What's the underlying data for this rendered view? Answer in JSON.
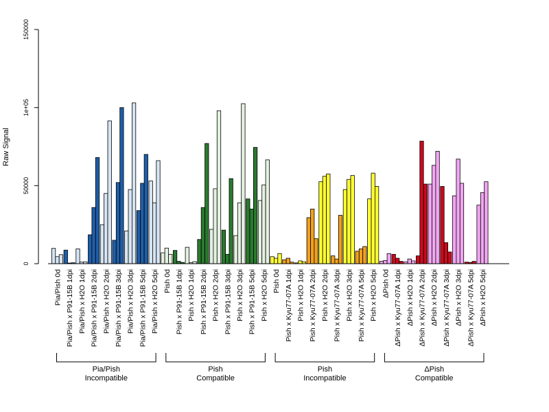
{
  "chart_data": {
    "type": "bar",
    "ylabel": "Raw Signal",
    "ylim": [
      0,
      150000
    ],
    "yticks": [
      0,
      50000,
      100000,
      150000
    ],
    "ytick_labels": [
      "0",
      "50000",
      "1e+05",
      "150000"
    ],
    "colors": {
      "pia_dark": "#1f5ea8",
      "pia_light": "#d6e4f3",
      "pish_dark": "#2a7a2e",
      "pish_light": "#e4f1e1",
      "kyu_dark": "#f0a020",
      "kyu_light": "#ffff33",
      "dpish_dark": "#cc0a1e",
      "dpish_light": "#f2a6f2"
    },
    "groups": [
      {
        "label": "Pia/Pish\nIncompatible",
        "categories": [
          {
            "label": "Pia/Pish 0d",
            "color": "pia_light",
            "values": [
              9800,
              4500,
              5800
            ]
          },
          {
            "label": "Pia/Pish x P91-15B 1dpi",
            "color": "pia_dark",
            "values": [
              8700,
              400,
              600
            ]
          },
          {
            "label": "Pia/Pish x H2O 1dpi",
            "color": "pia_light",
            "values": [
              9500,
              1000,
              1200
            ]
          },
          {
            "label": "Pia/Pish x P91-15B 2dpi",
            "color": "pia_dark",
            "values": [
              18500,
              36000,
              68000
            ]
          },
          {
            "label": "Pia/Pish x H2O 2dpi",
            "color": "pia_light",
            "values": [
              25000,
              45000,
              91500
            ]
          },
          {
            "label": "Pia/Pish x P91-15B 3dpi",
            "color": "pia_dark",
            "values": [
              15000,
              52000,
              100000
            ]
          },
          {
            "label": "Pia/Pish x H2O 3dpi",
            "color": "pia_light",
            "values": [
              21000,
              47500,
              103000
            ]
          },
          {
            "label": "Pia/Pish x P91-15B 5dpi",
            "color": "pia_dark",
            "values": [
              34000,
              51500,
              70000
            ]
          },
          {
            "label": "Pia/Pish x H2O 5dpi",
            "color": "pia_light",
            "values": [
              53000,
              39000,
              66000
            ]
          }
        ]
      },
      {
        "label": "Pish\nCompatible",
        "categories": [
          {
            "label": "Pish 0d",
            "color": "pish_light",
            "values": [
              7000,
              10000,
              6000
            ]
          },
          {
            "label": "Pish x P91-15B 1dpi",
            "color": "pish_dark",
            "values": [
              8500,
              1500,
              800
            ]
          },
          {
            "label": "Pish x H2O 1dpi",
            "color": "pish_light",
            "values": [
              10500,
              600,
              1300
            ]
          },
          {
            "label": "Pish x P91-15B 2dpi",
            "color": "pish_dark",
            "values": [
              15500,
              36000,
              77000
            ]
          },
          {
            "label": "Pish x H2O 2dpi",
            "color": "pish_light",
            "values": [
              22000,
              48000,
              98000
            ]
          },
          {
            "label": "Pish x P91-15B 3dpi",
            "color": "pish_dark",
            "values": [
              21500,
              6000,
              54500
            ]
          },
          {
            "label": "Pish x H2O 3dpi",
            "color": "pish_light",
            "values": [
              18000,
              39000,
              102500
            ]
          },
          {
            "label": "Pish x P91-15B 5dpi",
            "color": "pish_dark",
            "values": [
              41500,
              35000,
              74500
            ]
          },
          {
            "label": "Pish x H2O 5dpi",
            "color": "pish_light",
            "values": [
              40500,
              50500,
              66500
            ]
          }
        ]
      },
      {
        "label": "Pish\nIncompatible",
        "categories": [
          {
            "label": "Pish 0d",
            "color": "kyu_light",
            "values": [
              4500,
              3500,
              6500
            ]
          },
          {
            "label": "Pish x Kyu77-07A 1dpi",
            "color": "kyu_dark",
            "values": [
              2500,
              3500,
              1000
            ]
          },
          {
            "label": "Pish x H2O 1dpi",
            "color": "kyu_light",
            "values": [
              500,
              1800,
              1200
            ]
          },
          {
            "label": "Pish x Kyu77-07A 2dpi",
            "color": "kyu_dark",
            "values": [
              29500,
              35000,
              16000
            ]
          },
          {
            "label": "Pish x H2O 2dpi",
            "color": "kyu_light",
            "values": [
              52500,
              56000,
              57500
            ]
          },
          {
            "label": "Pish x Kyu77-07A 3dpi",
            "color": "kyu_dark",
            "values": [
              5000,
              3000,
              31000
            ]
          },
          {
            "label": "Pish x H2O 3dpi",
            "color": "kyu_light",
            "values": [
              47500,
              54000,
              56500
            ]
          },
          {
            "label": "Pish x Kyu77-07A 5dpi",
            "color": "kyu_dark",
            "values": [
              8000,
              9500,
              11000
            ]
          },
          {
            "label": "Pish x H2O 5dpi",
            "color": "kyu_light",
            "values": [
              41500,
              58000,
              49500
            ]
          }
        ]
      },
      {
        "label": "ΔPish\nCompatible",
        "categories": [
          {
            "label": "ΔPish 0d",
            "color": "dpish_light",
            "values": [
              1500,
              2000,
              6500
            ]
          },
          {
            "label": "ΔPish x Kyu77-07A 1dpi",
            "color": "dpish_dark",
            "values": [
              6000,
              3500,
              1500
            ]
          },
          {
            "label": "ΔPish x H2O 1dpi",
            "color": "dpish_light",
            "values": [
              1200,
              3000,
              1800
            ]
          },
          {
            "label": "ΔPish x Kyu77-07A 2dpi",
            "color": "dpish_dark",
            "values": [
              5000,
              78500,
              51000
            ]
          },
          {
            "label": "ΔPish x H2O 2dpi",
            "color": "dpish_light",
            "values": [
              51000,
              63000,
              72000
            ]
          },
          {
            "label": "ΔPish x Kyu77-07A 3dpi",
            "color": "dpish_dark",
            "values": [
              49500,
              13500,
              7500
            ]
          },
          {
            "label": "ΔPish x H2O 3dpi",
            "color": "dpish_light",
            "values": [
              43500,
              67000,
              51500
            ]
          },
          {
            "label": "ΔPish x Kyu77-07A 5dpi",
            "color": "dpish_dark",
            "values": [
              1000,
              800,
              1500
            ]
          },
          {
            "label": "ΔPish x H2O 5dpi",
            "color": "dpish_light",
            "values": [
              37500,
              45500,
              52500
            ]
          }
        ]
      }
    ]
  }
}
